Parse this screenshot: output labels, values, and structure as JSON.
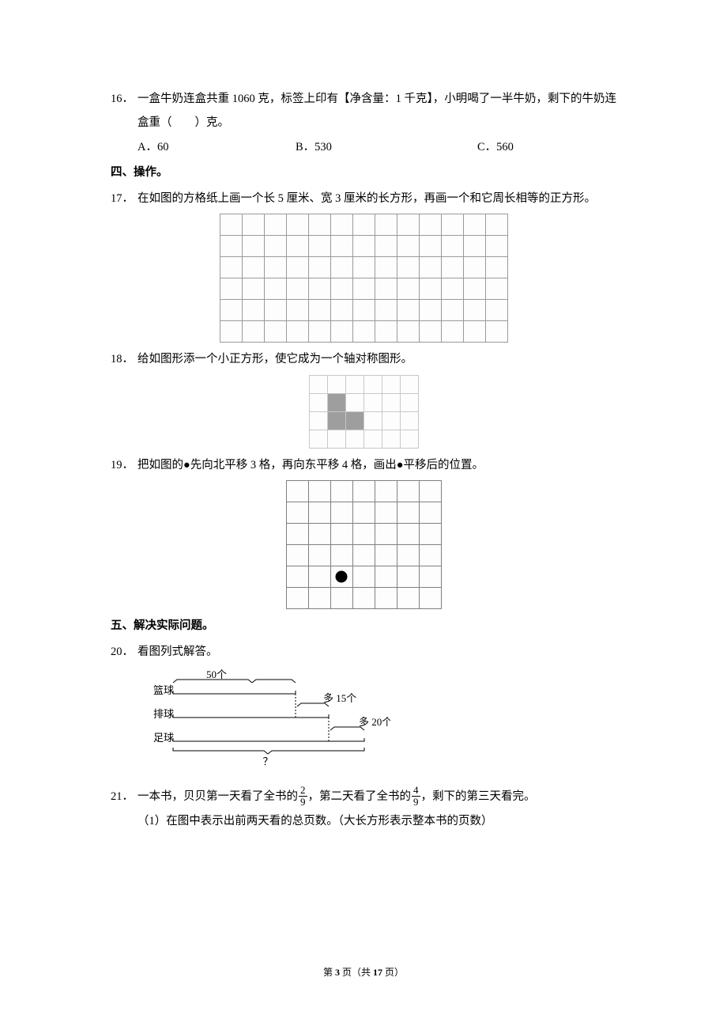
{
  "q16": {
    "num": "16．",
    "text": "一盒牛奶连盒共重 1060 克，标签上印有【净含量：1 千克】，小明喝了一半牛奶，剩下的牛奶连盒重（　　）克。",
    "options": {
      "a": "A．60",
      "b": "B．530",
      "c": "C．560"
    }
  },
  "section4": "四、操作。",
  "q17": {
    "num": "17．",
    "text": "在如图的方格纸上画一个长 5 厘米、宽 3 厘米的长方形，再画一个和它周长相等的正方形。",
    "grid": {
      "cols": 13,
      "rows": 6,
      "cell_size": 28,
      "border_color": "#9a9a9a"
    }
  },
  "q18": {
    "num": "18．",
    "text": "给如图形添一个小正方形，使它成为一个轴对称图形。",
    "grid": {
      "cols": 6,
      "rows": 4,
      "cell_size": 23,
      "border_color": "#c8c8c8",
      "shaded_cells": [
        {
          "row": 1,
          "col": 1
        },
        {
          "row": 2,
          "col": 1
        },
        {
          "row": 2,
          "col": 2
        }
      ],
      "shade_color": "#9e9e9e"
    }
  },
  "q19": {
    "num": "19．",
    "text": "把如图的●先向北平移 3 格，再向东平移 4 格，画出●平移后的位置。",
    "grid": {
      "cols": 7,
      "rows": 6,
      "cell_size": 28,
      "border_color": "#808080",
      "dot": {
        "row": 4,
        "col": 2,
        "color": "#000000"
      }
    }
  },
  "section5": "五、解决实际问题。",
  "q20": {
    "num": "20．",
    "text": "看图列式解答。",
    "diagram": {
      "labels": {
        "top": "50个",
        "row1": "篮球",
        "row2": "排球",
        "row3": "足球",
        "more1": "多 15个",
        "more2": "多 20个",
        "bottom": "？"
      },
      "line_color": "#000000",
      "font_size": 13
    }
  },
  "q21": {
    "num": "21．",
    "text_parts": {
      "p1": "一本书，贝贝第一天看了全书的",
      "frac1_num": "2",
      "frac1_den": "9",
      "p2": "，第二天看了全书的",
      "frac2_num": "4",
      "frac2_den": "9",
      "p3": "，剩下的第三天看完。"
    },
    "sub1": "（1）在图中表示出前两天看的总页数。（大长方形表示整本书的页数）"
  },
  "footer": {
    "prefix": "第 ",
    "page": "3",
    "middle": " 页（共 ",
    "total": "17",
    "suffix": " 页）"
  }
}
